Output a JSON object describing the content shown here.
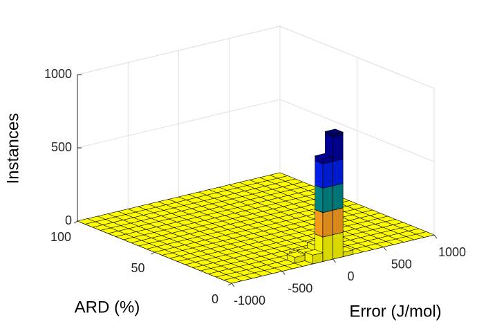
{
  "chart_data": {
    "type": "bar3d",
    "xlabel": "Error (J/mol)",
    "ylabel": "ARD (%)",
    "zlabel": "Instances",
    "xlim": [
      -1000,
      1000
    ],
    "ylim": [
      0,
      100
    ],
    "zlim": [
      0,
      1000
    ],
    "xticks": [
      -1000,
      -500,
      0,
      500,
      1000
    ],
    "yticks": [
      0,
      50,
      100
    ],
    "zticks": [
      0,
      500,
      1000
    ],
    "grid": true,
    "xbins": [
      -1000,
      -900,
      -800,
      -700,
      -600,
      -500,
      -400,
      -300,
      -200,
      -100,
      0,
      100,
      200,
      300,
      400,
      500,
      600,
      700,
      800,
      900,
      1000
    ],
    "ybins": [
      0,
      5,
      10,
      15,
      20,
      25,
      30,
      35,
      40,
      45,
      50,
      55,
      60,
      65,
      70,
      75,
      80,
      85,
      90,
      95,
      100
    ],
    "colors": [
      "#ffff00",
      "#ffa020",
      "#008a8a",
      "#0020f0",
      "#0000a0",
      "#000070"
    ],
    "counts": [
      [
        0,
        0,
        0,
        0,
        0,
        0,
        0,
        0,
        60,
        700,
        850,
        30,
        0,
        0,
        0,
        0,
        0,
        0,
        0,
        0
      ],
      [
        0,
        0,
        0,
        0,
        0,
        0,
        0,
        40,
        50,
        90,
        80,
        0,
        0,
        0,
        0,
        0,
        0,
        0,
        0,
        0
      ],
      [
        0,
        0,
        0,
        0,
        0,
        0,
        0,
        0,
        20,
        0,
        0,
        0,
        0,
        0,
        0,
        0,
        0,
        0,
        0,
        0
      ],
      [
        0,
        0,
        0,
        0,
        0,
        0,
        0,
        0,
        0,
        0,
        0,
        0,
        0,
        0,
        0,
        0,
        0,
        0,
        0,
        0
      ],
      [
        0,
        0,
        0,
        0,
        0,
        0,
        0,
        0,
        0,
        0,
        0,
        0,
        0,
        0,
        0,
        0,
        0,
        0,
        0,
        0
      ],
      [
        0,
        0,
        0,
        0,
        0,
        0,
        0,
        0,
        0,
        0,
        0,
        0,
        0,
        0,
        0,
        0,
        0,
        0,
        0,
        0
      ],
      [
        0,
        0,
        0,
        0,
        0,
        0,
        0,
        0,
        0,
        0,
        0,
        0,
        0,
        0,
        0,
        0,
        0,
        0,
        0,
        0
      ],
      [
        0,
        0,
        0,
        0,
        0,
        0,
        0,
        0,
        0,
        0,
        0,
        0,
        0,
        0,
        0,
        0,
        0,
        0,
        0,
        0
      ],
      [
        0,
        0,
        0,
        0,
        0,
        0,
        0,
        0,
        0,
        0,
        0,
        0,
        0,
        0,
        0,
        0,
        0,
        0,
        0,
        0
      ],
      [
        0,
        0,
        0,
        0,
        0,
        0,
        0,
        0,
        0,
        0,
        0,
        0,
        0,
        0,
        0,
        0,
        0,
        0,
        0,
        0
      ],
      [
        0,
        0,
        0,
        0,
        0,
        0,
        0,
        0,
        0,
        0,
        0,
        0,
        0,
        0,
        0,
        0,
        0,
        0,
        0,
        0
      ],
      [
        0,
        0,
        0,
        0,
        0,
        0,
        0,
        0,
        0,
        0,
        0,
        0,
        0,
        0,
        0,
        0,
        0,
        0,
        0,
        0
      ],
      [
        0,
        0,
        0,
        0,
        0,
        0,
        0,
        0,
        0,
        0,
        0,
        0,
        0,
        0,
        0,
        0,
        0,
        0,
        0,
        0
      ],
      [
        0,
        0,
        0,
        0,
        0,
        0,
        0,
        0,
        0,
        0,
        0,
        0,
        0,
        0,
        0,
        0,
        0,
        0,
        0,
        0
      ],
      [
        0,
        0,
        0,
        0,
        0,
        0,
        0,
        0,
        0,
        0,
        0,
        0,
        0,
        0,
        0,
        0,
        0,
        0,
        0,
        0
      ],
      [
        0,
        0,
        0,
        0,
        0,
        0,
        0,
        0,
        0,
        0,
        0,
        0,
        0,
        0,
        0,
        0,
        0,
        0,
        0,
        0
      ],
      [
        0,
        0,
        0,
        0,
        0,
        0,
        0,
        0,
        0,
        0,
        0,
        0,
        0,
        0,
        0,
        0,
        0,
        0,
        0,
        0
      ],
      [
        0,
        0,
        0,
        0,
        0,
        0,
        0,
        0,
        0,
        0,
        0,
        0,
        0,
        0,
        0,
        0,
        0,
        0,
        0,
        0
      ],
      [
        0,
        0,
        0,
        0,
        0,
        0,
        0,
        0,
        0,
        0,
        0,
        0,
        0,
        0,
        0,
        0,
        0,
        0,
        0,
        0
      ],
      [
        0,
        0,
        0,
        0,
        0,
        0,
        0,
        0,
        0,
        0,
        0,
        0,
        0,
        0,
        0,
        0,
        0,
        0,
        0,
        0
      ]
    ]
  }
}
